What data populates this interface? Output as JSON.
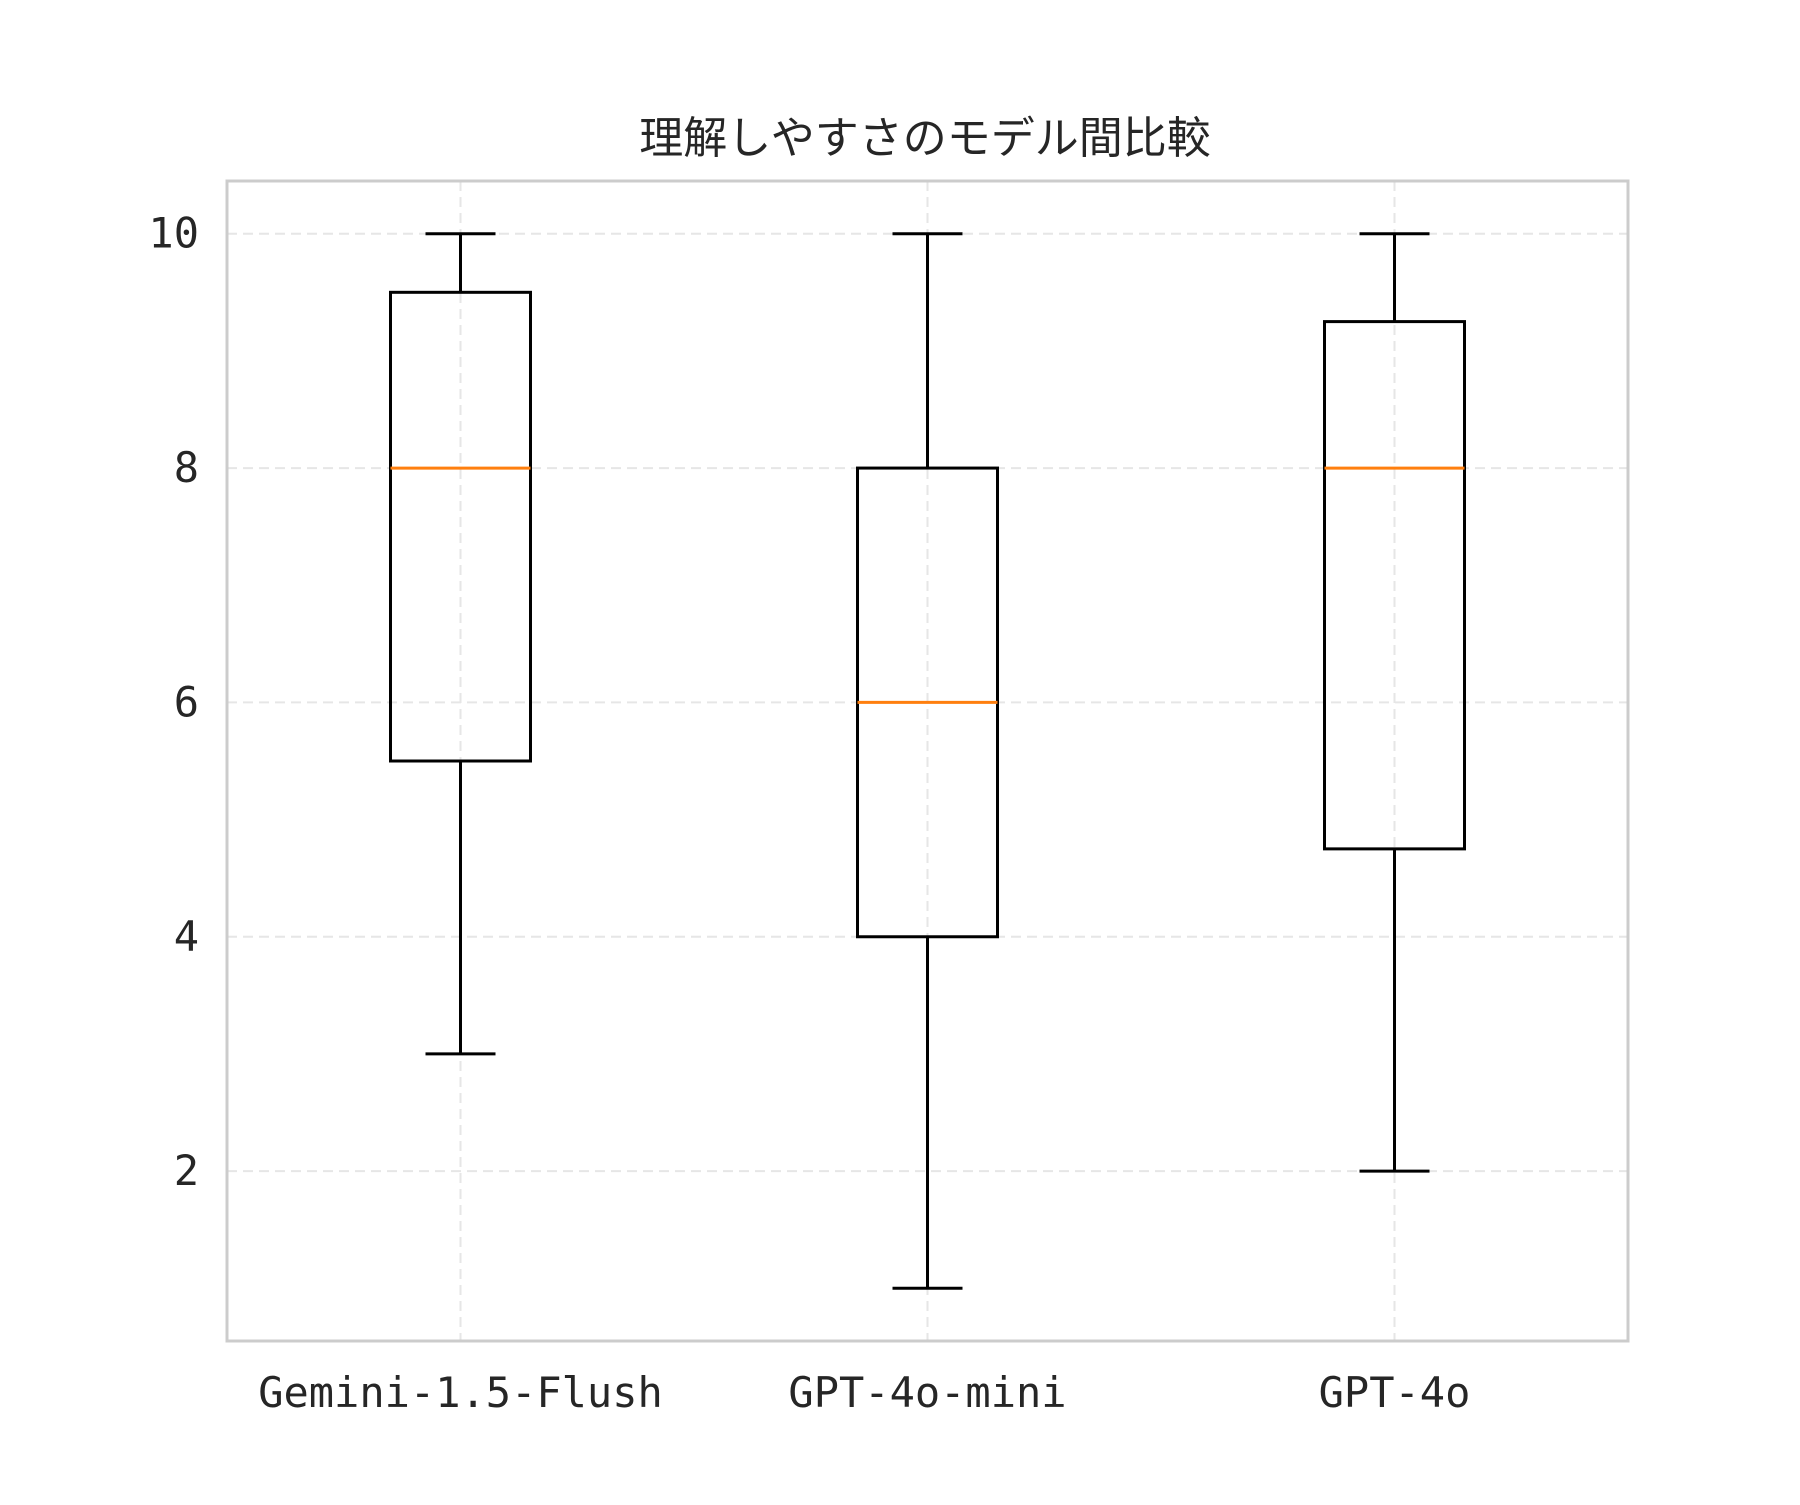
{
  "chart_data": {
    "type": "box",
    "title": "理解しやすさのモデル間比較",
    "xlabel": "",
    "ylabel": "",
    "categories": [
      "Gemini-1.5-Flush",
      "GPT-4o-mini",
      "GPT-4o"
    ],
    "boxes": [
      {
        "category": "Gemini-1.5-Flush",
        "whisker_low": 3,
        "q1": 5.5,
        "median": 8,
        "q3": 9.5,
        "whisker_high": 10
      },
      {
        "category": "GPT-4o-mini",
        "whisker_low": 1,
        "q1": 4,
        "median": 6,
        "q3": 8,
        "whisker_high": 10
      },
      {
        "category": "GPT-4o",
        "whisker_low": 2,
        "q1": 4.75,
        "median": 8,
        "q3": 9.25,
        "whisker_high": 10
      }
    ],
    "ylim": [
      0.55,
      10.45
    ],
    "yticks": [
      2,
      4,
      6,
      8,
      10
    ],
    "grid": true,
    "legend": "none",
    "colors": {
      "box": "#000000",
      "median": "#ff7f0e",
      "grid": "#e6e6e6",
      "frame": "#cccccc",
      "text": "#262626"
    }
  }
}
